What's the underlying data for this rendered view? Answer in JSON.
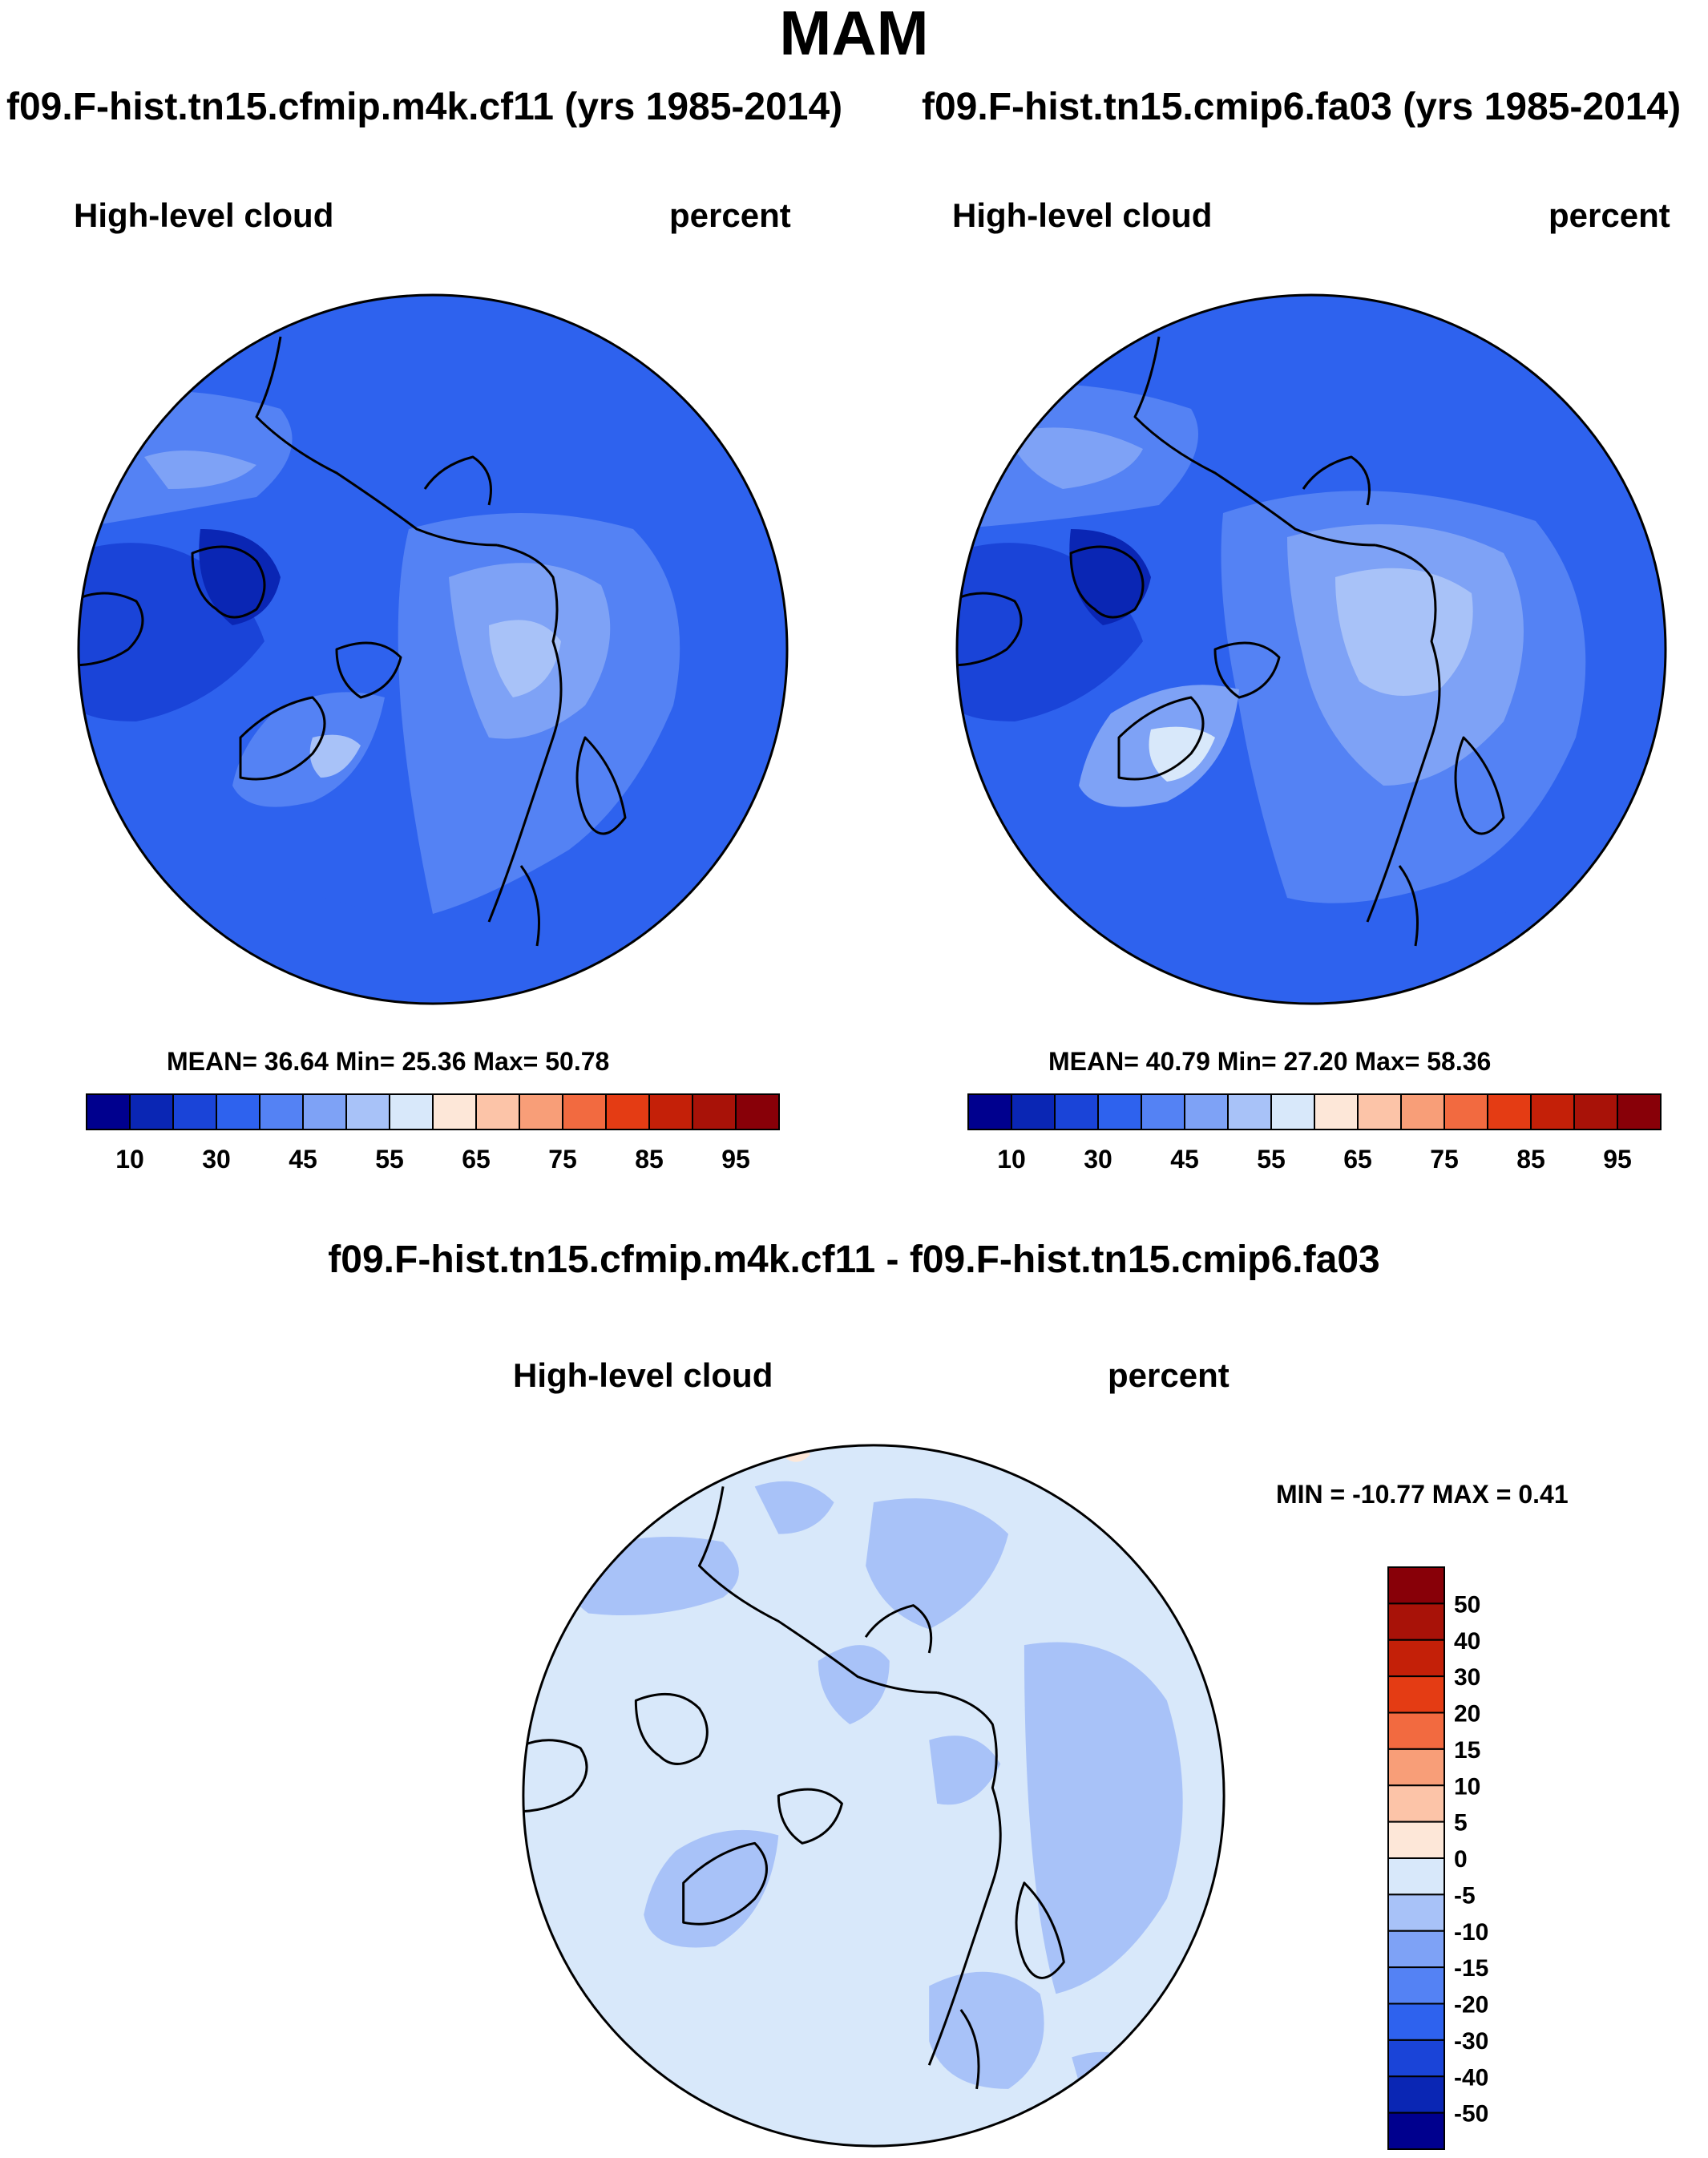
{
  "title": "MAM",
  "panels": [
    {
      "id": "cf11",
      "case_title": "f09.F-hist.tn15.cfmip.m4k.cf11 (yrs 1985-2014)",
      "variable": "High-level cloud",
      "units": "percent",
      "stats": {
        "mean": "36.64",
        "min": "25.36",
        "max": "50.78"
      },
      "stats_text": "MEAN=  36.64  Min=  25.36  Max=  50.78"
    },
    {
      "id": "fa03",
      "case_title": "f09.F-hist.tn15.cmip6.fa03 (yrs 1985-2014)",
      "variable": "High-level cloud",
      "units": "percent",
      "stats": {
        "mean": "40.79",
        "min": "27.20",
        "max": "58.36"
      },
      "stats_text": "MEAN=  40.79  Min=  27.20  Max=  58.36"
    }
  ],
  "diff_panel": {
    "title": "f09.F-hist.tn15.cfmip.m4k.cf11 - f09.F-hist.tn15.cmip6.fa03",
    "variable": "High-level cloud",
    "units": "percent",
    "stats": {
      "min": "-10.77",
      "max": "0.41"
    },
    "stats_text": "MIN = -10.77 MAX =   0.41"
  },
  "chart_data": [
    {
      "type": "heatmap",
      "projection": "north polar stereographic",
      "title": "f09.F-hist.tn15.cfmip.m4k.cf11 (yrs 1985-2014)",
      "variable": "High-level cloud",
      "units": "percent",
      "mean": 36.64,
      "min": 25.36,
      "max": 50.78,
      "colorbar": {
        "orientation": "horizontal",
        "levels": [
          10,
          20,
          30,
          40,
          45,
          50,
          55,
          60,
          65,
          70,
          75,
          80,
          85,
          90,
          95
        ],
        "tick_labels": [
          "10",
          "30",
          "45",
          "55",
          "65",
          "75",
          "85",
          "95"
        ],
        "colors": [
          "#00008e",
          "#0a26b4",
          "#1a44d8",
          "#2e62ee",
          "#5482f4",
          "#7ea2f6",
          "#a8c2f8",
          "#d8e8fa",
          "#fde7d8",
          "#fcc4a8",
          "#f89e78",
          "#f26a40",
          "#e43c14",
          "#c42008",
          "#a81208",
          "#880008"
        ]
      }
    },
    {
      "type": "heatmap",
      "projection": "north polar stereographic",
      "title": "f09.F-hist.tn15.cmip6.fa03 (yrs 1985-2014)",
      "variable": "High-level cloud",
      "units": "percent",
      "mean": 40.79,
      "min": 27.2,
      "max": 58.36,
      "colorbar": {
        "orientation": "horizontal",
        "levels": [
          10,
          20,
          30,
          40,
          45,
          50,
          55,
          60,
          65,
          70,
          75,
          80,
          85,
          90,
          95
        ],
        "tick_labels": [
          "10",
          "30",
          "45",
          "55",
          "65",
          "75",
          "85",
          "95"
        ],
        "colors": [
          "#00008e",
          "#0a26b4",
          "#1a44d8",
          "#2e62ee",
          "#5482f4",
          "#7ea2f6",
          "#a8c2f8",
          "#d8e8fa",
          "#fde7d8",
          "#fcc4a8",
          "#f89e78",
          "#f26a40",
          "#e43c14",
          "#c42008",
          "#a81208",
          "#880008"
        ]
      }
    },
    {
      "type": "heatmap",
      "projection": "north polar stereographic",
      "title": "f09.F-hist.tn15.cfmip.m4k.cf11 - f09.F-hist.tn15.cmip6.fa03",
      "variable": "High-level cloud",
      "units": "percent",
      "min": -10.77,
      "max": 0.41,
      "colorbar": {
        "orientation": "vertical",
        "levels": [
          -50,
          -40,
          -30,
          -20,
          -15,
          -10,
          -5,
          0,
          5,
          10,
          15,
          20,
          30,
          40,
          50
        ],
        "tick_labels": [
          "50",
          "40",
          "30",
          "20",
          "15",
          "10",
          "5",
          "0",
          "-5",
          "-10",
          "-15",
          "-20",
          "-30",
          "-40",
          "-50"
        ],
        "colors": [
          "#00008e",
          "#0a26b4",
          "#1a44d8",
          "#2e62ee",
          "#5482f4",
          "#7ea2f6",
          "#a8c2f8",
          "#d8e8fa",
          "#fde7d8",
          "#fcc4a8",
          "#f89e78",
          "#f26a40",
          "#e43c14",
          "#c42008",
          "#a81208",
          "#880008"
        ]
      }
    }
  ]
}
